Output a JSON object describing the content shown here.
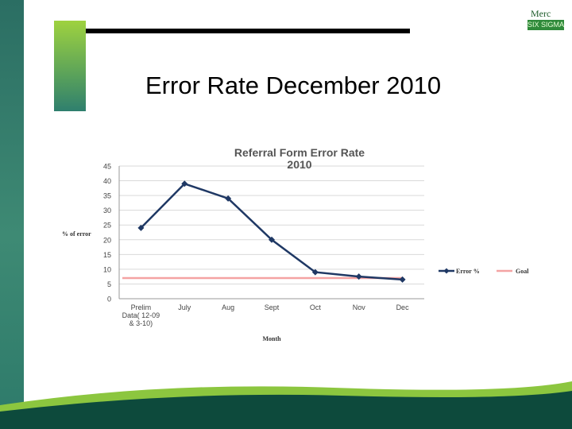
{
  "slide": {
    "title": "Error Rate December 2010",
    "logo_text": "Merc",
    "logo_sub": "SIX SIGMA"
  },
  "colors": {
    "sidebar": "#2b6e63",
    "accent_green": "#8cc63f",
    "error_line": "#1f3864",
    "goal_line": "#f4a3a3",
    "footer_dark": "#0d4a3c"
  },
  "chart_data": {
    "type": "line",
    "title": "Referral Form Error Rate 2010",
    "title_lines": [
      "Referral Form Error Rate",
      "2010"
    ],
    "xlabel": "Month",
    "ylabel": "% of error",
    "ylim": [
      0,
      45
    ],
    "yticks": [
      0,
      5,
      10,
      15,
      20,
      25,
      30,
      35,
      40,
      45
    ],
    "grid": true,
    "legend_position": "right",
    "categories": [
      "Prelim Data( 12-09 & 3-10)",
      "July",
      "Aug",
      "Sept",
      "Oct",
      "Nov",
      "Dec"
    ],
    "category_lines": [
      [
        "Prelim",
        "Data( 12-09",
        "& 3-10)"
      ],
      [
        "July"
      ],
      [
        "Aug"
      ],
      [
        "Sept"
      ],
      [
        "Oct"
      ],
      [
        "Nov"
      ],
      [
        "Dec"
      ]
    ],
    "series": [
      {
        "name": "Error %",
        "values": [
          24,
          39,
          34,
          20,
          9,
          7.5,
          6.5
        ]
      },
      {
        "name": "Goal",
        "values": [
          7,
          7,
          7,
          7,
          7,
          7,
          7
        ]
      }
    ]
  }
}
